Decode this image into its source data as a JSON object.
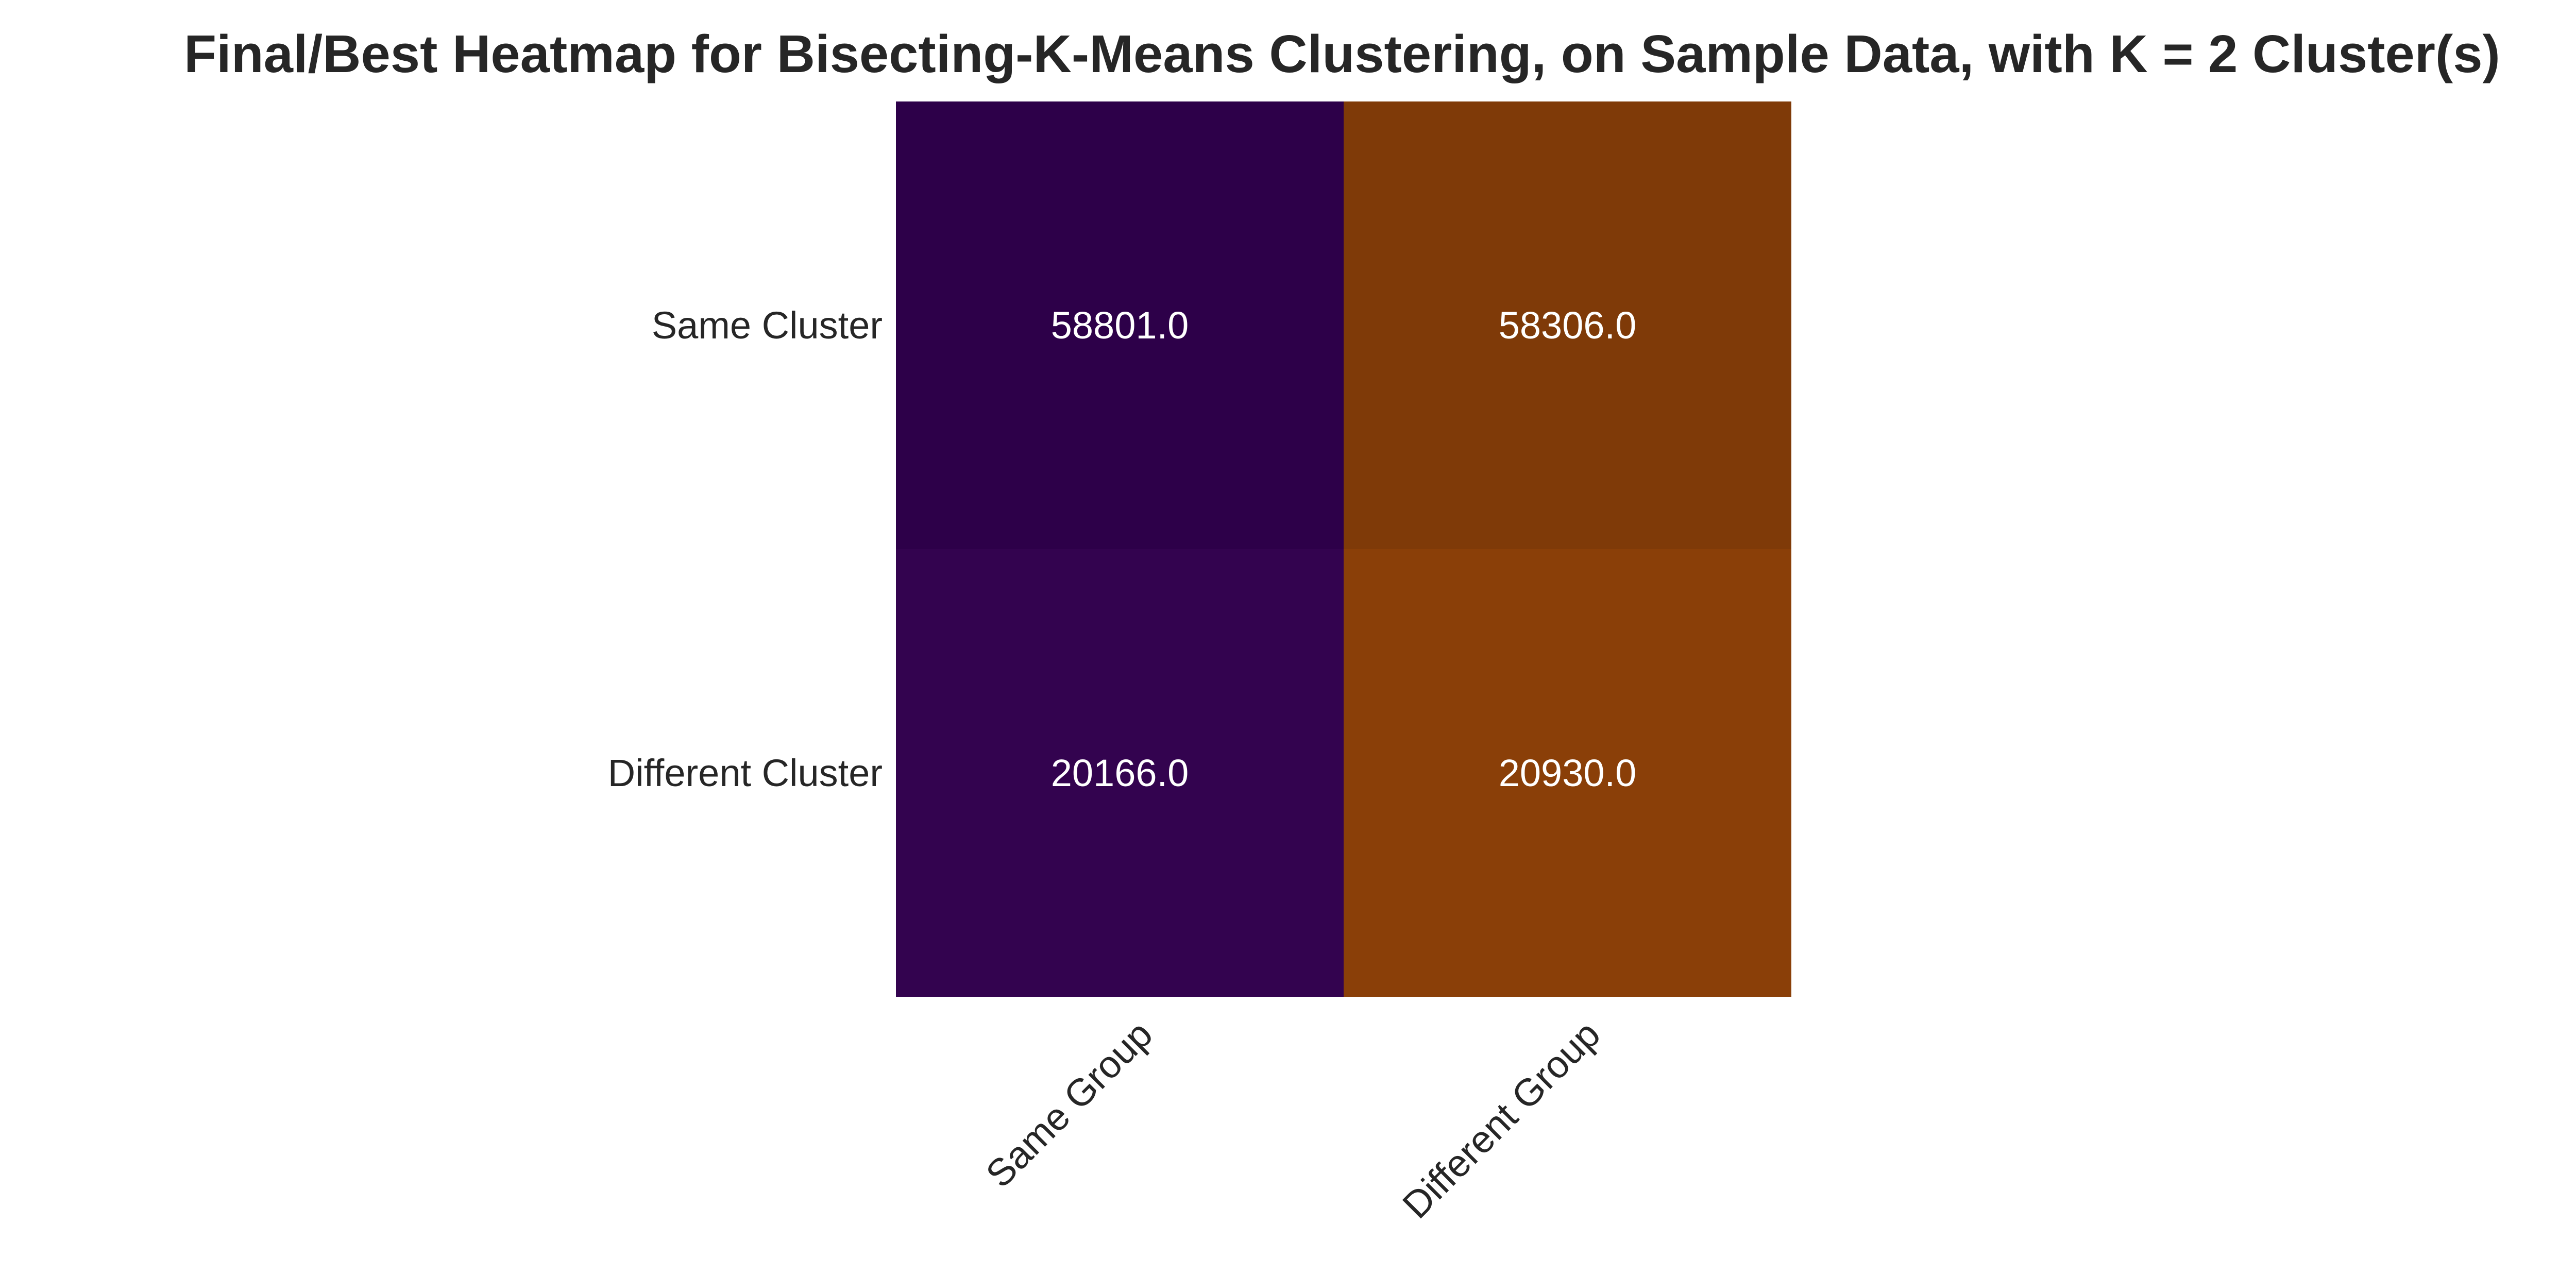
{
  "chart_data": {
    "type": "heatmap",
    "title": "Final/Best Heatmap for Bisecting-K-Means Clustering, on Sample Data, with K = 2 Cluster(s)",
    "xlabel": "",
    "ylabel": "",
    "x_categories": [
      "Same Group",
      "Different Group"
    ],
    "y_categories": [
      "Same Cluster",
      "Different Cluster"
    ],
    "values": [
      [
        58801.0,
        58306.0
      ],
      [
        20166.0,
        20930.0
      ]
    ],
    "cell_labels": [
      [
        "58801.0",
        "58306.0"
      ],
      [
        "20166.0",
        "20930.0"
      ]
    ],
    "cell_colors": [
      [
        "#2d0049",
        "#7f3a08"
      ],
      [
        "#33034f",
        "#8a3f08"
      ]
    ],
    "colorbar": false,
    "grid": false
  }
}
